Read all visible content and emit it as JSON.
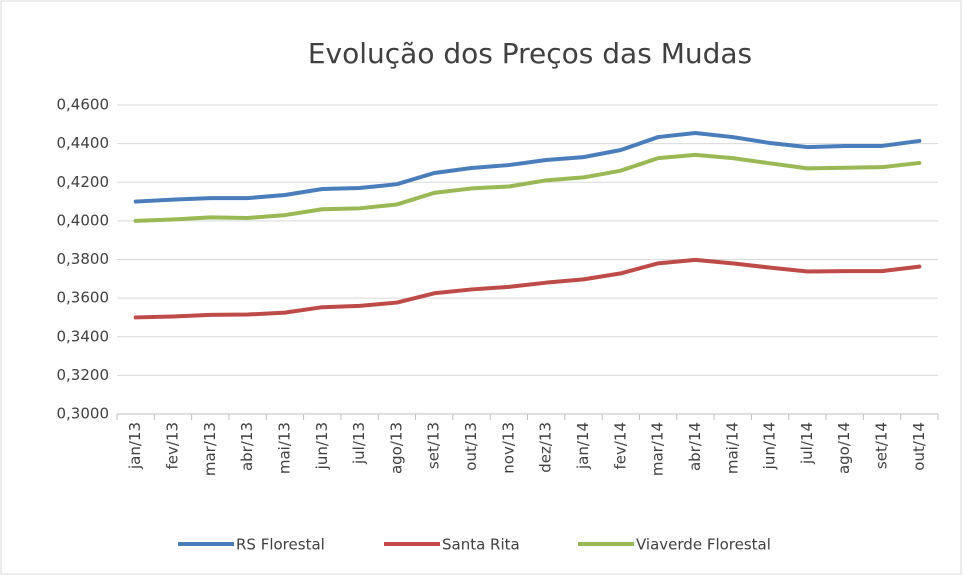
{
  "chart_data": {
    "type": "line",
    "title": "Evolução dos Preços das Mudas",
    "categories": [
      "jan/13",
      "fev/13",
      "mar/13",
      "abr/13",
      "mai/13",
      "jun/13",
      "jul/13",
      "ago/13",
      "set/13",
      "out/13",
      "nov/13",
      "dez/13",
      "jan/14",
      "fev/14",
      "mar/14",
      "abr/14",
      "mai/14",
      "jun/14",
      "jul/14",
      "ago/14",
      "set/14",
      "out/14"
    ],
    "series": [
      {
        "name": "RS Florestal",
        "color": "#4a7ebb",
        "values": [
          0.41,
          0.411,
          0.4118,
          0.4118,
          0.4134,
          0.4165,
          0.417,
          0.419,
          0.4248,
          0.4274,
          0.4289,
          0.4315,
          0.433,
          0.4367,
          0.4434,
          0.4455,
          0.4434,
          0.4403,
          0.4382,
          0.4388,
          0.4388,
          0.4414
        ]
      },
      {
        "name": "Santa Rita",
        "color": "#be4b48",
        "values": [
          0.35,
          0.3505,
          0.3513,
          0.3515,
          0.3525,
          0.3553,
          0.356,
          0.3577,
          0.3625,
          0.3645,
          0.3658,
          0.368,
          0.3697,
          0.3728,
          0.378,
          0.3798,
          0.378,
          0.3758,
          0.3738,
          0.374,
          0.374,
          0.3763
        ]
      },
      {
        "name": "Viaverde Florestal",
        "color": "#98b954",
        "values": [
          0.4,
          0.4007,
          0.4018,
          0.4015,
          0.403,
          0.406,
          0.4065,
          0.4085,
          0.4145,
          0.4168,
          0.4178,
          0.421,
          0.4225,
          0.426,
          0.4325,
          0.4342,
          0.4325,
          0.4298,
          0.4272,
          0.4275,
          0.4278,
          0.43
        ]
      }
    ],
    "ylim": [
      0.3,
      0.46
    ],
    "yticks": [
      {
        "value": 0.3,
        "label": "0,3000"
      },
      {
        "value": 0.32,
        "label": "0,3200"
      },
      {
        "value": 0.34,
        "label": "0,3400"
      },
      {
        "value": 0.36,
        "label": "0,3600"
      },
      {
        "value": 0.38,
        "label": "0,3800"
      },
      {
        "value": 0.4,
        "label": "0,4000"
      },
      {
        "value": 0.42,
        "label": "0,4200"
      },
      {
        "value": 0.44,
        "label": "0,4400"
      },
      {
        "value": 0.46,
        "label": "0,4600"
      }
    ],
    "grid": true,
    "legend": "bottom"
  }
}
